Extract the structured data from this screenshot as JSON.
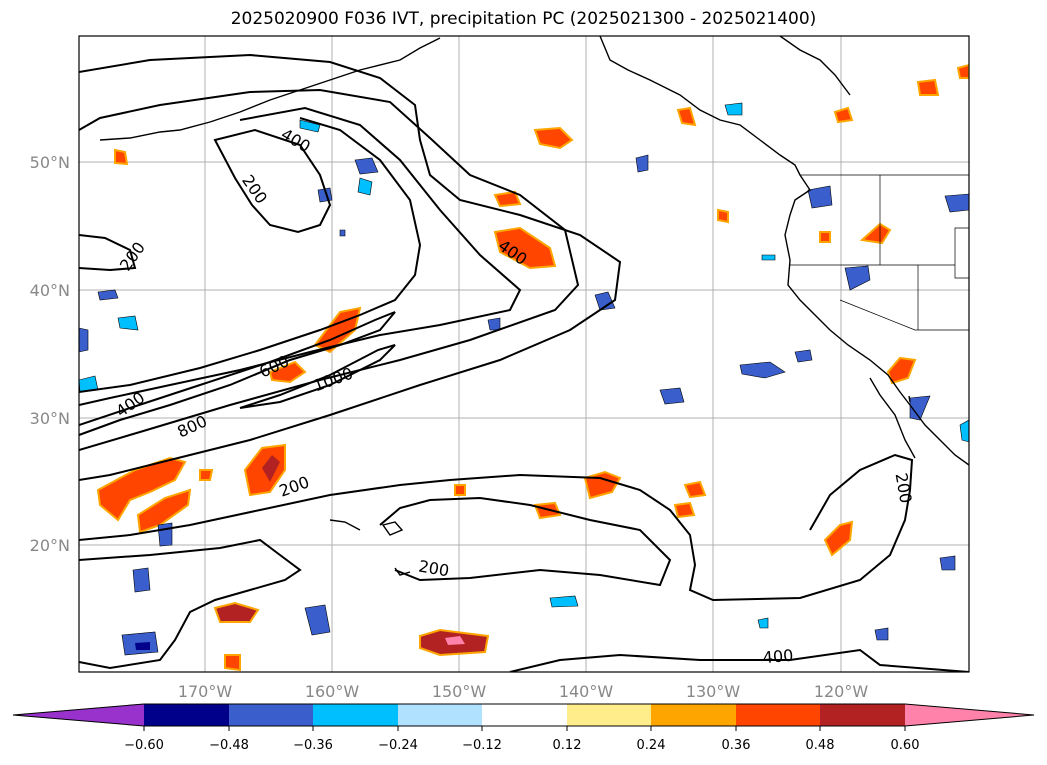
{
  "title": "2025020900 F036 IVT, precipitation PC (2025021300 - 2025021400)",
  "lat_labels": [
    "50°N",
    "40°N",
    "30°N",
    "20°N"
  ],
  "lon_labels": [
    "170°W",
    "160°W",
    "150°W",
    "140°W",
    "130°W",
    "120°W"
  ],
  "contour_labels": [
    "200",
    "200",
    "400",
    "400",
    "400",
    "600",
    "800",
    "1000",
    "200",
    "200",
    "200",
    "400"
  ],
  "colorbar": {
    "colors": [
      "#9932cc",
      "#00008b",
      "#3a5fcd",
      "#00bfff",
      "#b0e2ff",
      "#ffffff",
      "#ffec8b",
      "#ffa500",
      "#ff4500",
      "#b22222",
      "#ff82ab"
    ],
    "tick_labels": [
      "−0.60",
      "−0.48",
      "−0.36",
      "−0.24",
      "−0.12",
      "0.12",
      "0.24",
      "0.36",
      "0.48",
      "0.60"
    ]
  }
}
